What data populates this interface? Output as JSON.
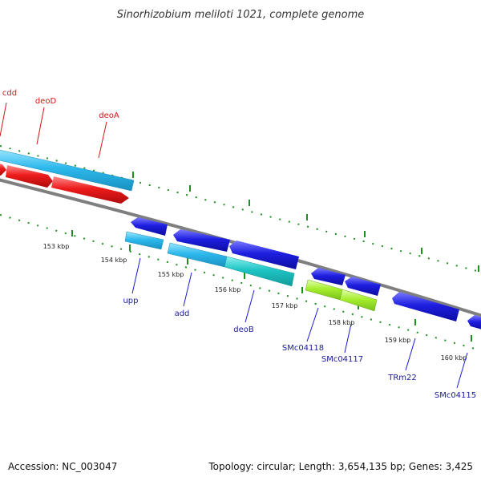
{
  "header": {
    "title": "Sinorhizobium meliloti 1021, complete genome"
  },
  "footer": {
    "accession": "Accession: NC_003047",
    "summary": "Topology: circular; Length: 3,654,135 bp; Genes: 3,425"
  },
  "colors": {
    "backbone": "#7f7f7f",
    "forward_gene": "#e8131a",
    "reverse_gene": "#1a1ad4",
    "cds_cyan": "#29b6e8",
    "cds_teal": "#1dc1c1",
    "cds_lime": "#9cee2c",
    "label_forward": "#d41414",
    "label_reverse": "#1a1a9a",
    "tick": "#1f8f1f"
  },
  "ticks": [
    "153 kbp",
    "154 kbp",
    "155 kbp",
    "156 kbp",
    "157 kbp",
    "158 kbp",
    "159 kbp",
    "160 kbp"
  ],
  "genes": [
    {
      "name": "cdd",
      "strand": "forward"
    },
    {
      "name": "deoD",
      "strand": "forward"
    },
    {
      "name": "deoA",
      "strand": "forward"
    },
    {
      "name": "upp",
      "strand": "reverse"
    },
    {
      "name": "add",
      "strand": "reverse"
    },
    {
      "name": "deoB",
      "strand": "reverse"
    },
    {
      "name": "SMc04118",
      "strand": "reverse"
    },
    {
      "name": "SMc04117",
      "strand": "reverse"
    },
    {
      "name": "TRm22",
      "strand": "reverse"
    },
    {
      "name": "SMc04115",
      "strand": "reverse"
    }
  ]
}
